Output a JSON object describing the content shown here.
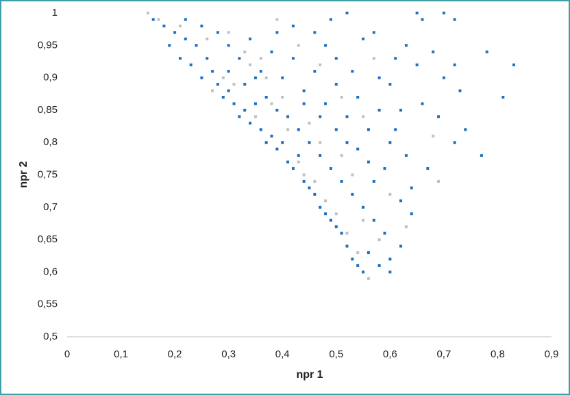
{
  "chart_data": {
    "type": "scatter",
    "x_label": "npr 1",
    "y_label": "npr 2",
    "xlim": [
      0,
      0.9
    ],
    "ylim": [
      0.5,
      1
    ],
    "xticks": [
      0,
      {
        "value": 0.1,
        "label": "0,1"
      },
      {
        "value": 0.2,
        "label": "0,2"
      },
      {
        "value": 0.3,
        "label": "0,3"
      },
      {
        "value": 0.4,
        "label": "0,4"
      },
      {
        "value": 0.5,
        "label": "0,5"
      },
      {
        "value": 0.6,
        "label": "0,6"
      },
      {
        "value": 0.7,
        "label": "0,7"
      },
      {
        "value": 0.8,
        "label": "0,8"
      },
      {
        "value": 0.9,
        "label": "0,9"
      }
    ],
    "yticks": [
      {
        "value": 0.5,
        "label": "0,5"
      },
      {
        "value": 0.55,
        "label": "0,55"
      },
      {
        "value": 0.6,
        "label": "0,6"
      },
      {
        "value": 0.65,
        "label": "0,65"
      },
      {
        "value": 0.7,
        "label": "0,7"
      },
      {
        "value": 0.75,
        "label": "0,75"
      },
      {
        "value": 0.8,
        "label": "0,8"
      },
      {
        "value": 0.85,
        "label": "0,85"
      },
      {
        "value": 0.9,
        "label": "0,9"
      },
      {
        "value": 0.95,
        "label": "0,95"
      },
      1
    ],
    "grid": false,
    "series": [
      {
        "color": "#c0c0c0",
        "x": [
          0.15,
          0.17,
          0.21,
          0.26,
          0.3,
          0.33,
          0.36,
          0.27,
          0.31,
          0.35,
          0.38,
          0.41,
          0.43,
          0.44,
          0.46,
          0.48,
          0.5,
          0.52,
          0.54,
          0.56,
          0.58,
          0.55,
          0.53,
          0.51,
          0.47,
          0.45,
          0.4,
          0.37,
          0.34,
          0.43,
          0.47,
          0.51,
          0.55,
          0.6,
          0.63,
          0.69,
          0.68,
          0.57,
          0.39,
          0.29
        ],
        "values": [
          1,
          0.99,
          0.98,
          0.96,
          0.97,
          0.94,
          0.93,
          0.88,
          0.89,
          0.84,
          0.86,
          0.82,
          0.77,
          0.75,
          0.74,
          0.71,
          0.69,
          0.66,
          0.63,
          0.59,
          0.65,
          0.68,
          0.75,
          0.78,
          0.8,
          0.83,
          0.87,
          0.9,
          0.92,
          0.95,
          0.92,
          0.87,
          0.84,
          0.72,
          0.67,
          0.74,
          0.81,
          0.93,
          0.99,
          0.9
        ]
      },
      {
        "color": "#1f6fbf",
        "x": [
          0.16,
          0.18,
          0.2,
          0.19,
          0.22,
          0.21,
          0.24,
          0.23,
          0.26,
          0.25,
          0.27,
          0.28,
          0.29,
          0.3,
          0.31,
          0.32,
          0.33,
          0.34,
          0.35,
          0.36,
          0.37,
          0.38,
          0.39,
          0.4,
          0.41,
          0.42,
          0.43,
          0.44,
          0.45,
          0.46,
          0.47,
          0.48,
          0.49,
          0.5,
          0.51,
          0.52,
          0.53,
          0.54,
          0.55,
          0.56,
          0.58,
          0.6,
          0.22,
          0.25,
          0.28,
          0.3,
          0.32,
          0.34,
          0.36,
          0.38,
          0.4,
          0.42,
          0.44,
          0.46,
          0.48,
          0.5,
          0.52,
          0.54,
          0.56,
          0.58,
          0.6,
          0.3,
          0.33,
          0.35,
          0.37,
          0.39,
          0.41,
          0.43,
          0.45,
          0.47,
          0.49,
          0.51,
          0.53,
          0.55,
          0.57,
          0.59,
          0.62,
          0.64,
          0.46,
          0.49,
          0.52,
          0.55,
          0.57,
          0.48,
          0.5,
          0.53,
          0.42,
          0.39,
          0.6,
          0.62,
          0.63,
          0.65,
          0.66,
          0.65,
          0.7,
          0.72,
          0.68,
          0.7,
          0.72,
          0.73,
          0.78,
          0.83,
          0.81,
          0.74,
          0.72,
          0.77,
          0.69,
          0.67,
          0.64,
          0.62,
          0.6,
          0.66,
          0.61,
          0.59,
          0.57,
          0.63,
          0.58,
          0.61,
          0.54,
          0.56,
          0.52,
          0.5,
          0.47,
          0.44
        ],
        "values": [
          0.99,
          0.98,
          0.97,
          0.95,
          0.96,
          0.93,
          0.95,
          0.92,
          0.93,
          0.9,
          0.91,
          0.89,
          0.87,
          0.88,
          0.86,
          0.84,
          0.85,
          0.83,
          0.86,
          0.82,
          0.8,
          0.81,
          0.79,
          0.8,
          0.77,
          0.76,
          0.78,
          0.74,
          0.73,
          0.72,
          0.7,
          0.69,
          0.68,
          0.67,
          0.66,
          0.64,
          0.62,
          0.61,
          0.6,
          0.63,
          0.61,
          0.62,
          0.99,
          0.98,
          0.97,
          0.95,
          0.93,
          0.96,
          0.91,
          0.94,
          0.9,
          0.93,
          0.88,
          0.91,
          0.86,
          0.89,
          0.84,
          0.87,
          0.82,
          0.85,
          0.8,
          0.91,
          0.89,
          0.9,
          0.87,
          0.85,
          0.84,
          0.82,
          0.8,
          0.78,
          0.76,
          0.74,
          0.72,
          0.7,
          0.68,
          0.66,
          0.71,
          0.69,
          0.97,
          0.99,
          1,
          0.96,
          0.97,
          0.95,
          0.93,
          0.91,
          0.98,
          0.97,
          0.89,
          0.85,
          0.95,
          0.92,
          0.86,
          1,
          1,
          0.99,
          0.94,
          0.9,
          0.92,
          0.88,
          0.94,
          0.92,
          0.87,
          0.82,
          0.8,
          0.78,
          0.84,
          0.76,
          0.73,
          0.64,
          0.6,
          0.99,
          0.93,
          0.76,
          0.74,
          0.78,
          0.9,
          0.82,
          0.79,
          0.77,
          0.8,
          0.82,
          0.84,
          0.86
        ]
      }
    ]
  }
}
